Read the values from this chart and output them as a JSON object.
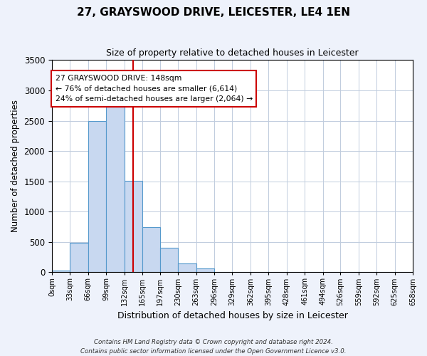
{
  "title_line1": "27, GRAYSWOOD DRIVE, LEICESTER, LE4 1EN",
  "title_line2": "Size of property relative to detached houses in Leicester",
  "xlabel": "Distribution of detached houses by size in Leicester",
  "ylabel": "Number of detached properties",
  "bin_edges": [
    0,
    33,
    66,
    99,
    132,
    165,
    197,
    230,
    263,
    296,
    329,
    362,
    395,
    428,
    461,
    494,
    526,
    559,
    592,
    625,
    658
  ],
  "bin_labels": [
    "0sqm",
    "33sqm",
    "66sqm",
    "99sqm",
    "132sqm",
    "165sqm",
    "197sqm",
    "230sqm",
    "263sqm",
    "296sqm",
    "329sqm",
    "362sqm",
    "395sqm",
    "428sqm",
    "461sqm",
    "494sqm",
    "526sqm",
    "559sqm",
    "592sqm",
    "625sqm",
    "658sqm"
  ],
  "bar_heights": [
    30,
    480,
    2500,
    2820,
    1510,
    750,
    400,
    150,
    60,
    0,
    0,
    0,
    0,
    0,
    0,
    0,
    0,
    0,
    0,
    0
  ],
  "bar_color": "#c8d8f0",
  "bar_edge_color": "#5599cc",
  "property_line_x": 148,
  "property_line_color": "#cc0000",
  "ylim": [
    0,
    3500
  ],
  "yticks": [
    0,
    500,
    1000,
    1500,
    2000,
    2500,
    3000,
    3500
  ],
  "annotation_text": "27 GRAYSWOOD DRIVE: 148sqm\n← 76% of detached houses are smaller (6,614)\n24% of semi-detached houses are larger (2,064) →",
  "annotation_box_color": "#ffffff",
  "annotation_box_edge_color": "#cc0000",
  "footer_line1": "Contains HM Land Registry data © Crown copyright and database right 2024.",
  "footer_line2": "Contains public sector information licensed under the Open Government Licence v3.0.",
  "background_color": "#eef2fb",
  "plot_background_color": "#ffffff",
  "grid_color": "#c0ccdd"
}
